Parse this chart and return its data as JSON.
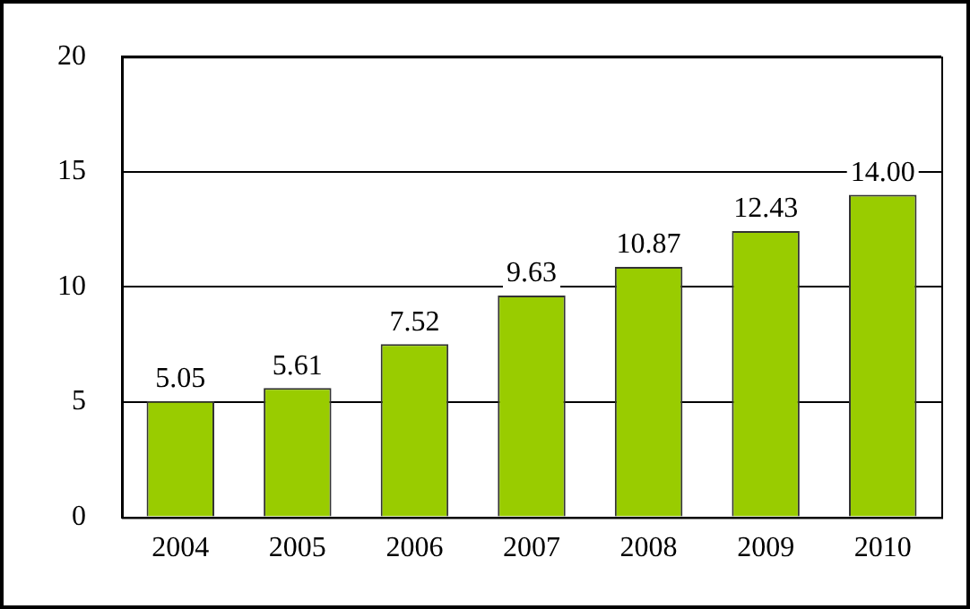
{
  "chart_data": {
    "type": "bar",
    "categories": [
      "2004",
      "2005",
      "2006",
      "2007",
      "2008",
      "2009",
      "2010"
    ],
    "values": [
      5.05,
      5.61,
      7.52,
      9.63,
      10.87,
      12.43,
      14.0
    ],
    "value_labels": [
      "5.05",
      "5.61",
      "7.52",
      "9.63",
      "10.87",
      "12.43",
      "14.00"
    ],
    "color": "#99cc00",
    "ylim": [
      0,
      20
    ],
    "yticks": [
      0,
      5,
      10,
      15,
      20
    ],
    "grid": "y",
    "legend": false
  }
}
